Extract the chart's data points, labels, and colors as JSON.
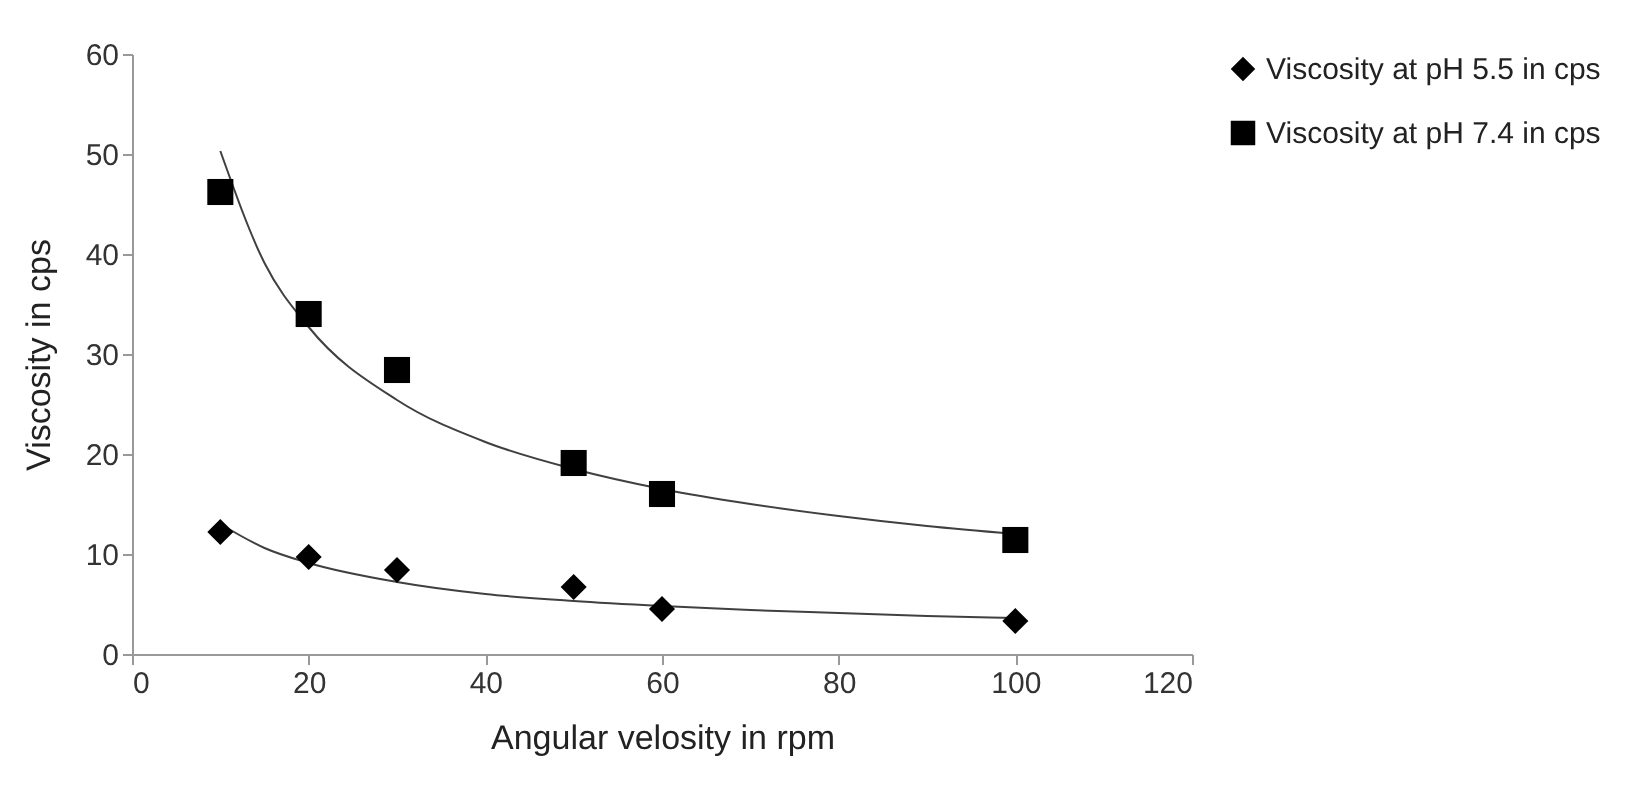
{
  "chart_data": {
    "type": "scatter",
    "xlabel": "Angular  velosity  in rpm",
    "ylabel": "Viscosity in cps",
    "x": [
      10,
      20,
      30,
      50,
      60,
      100
    ],
    "series": [
      {
        "name": "Viscosity at pH 5.5 in cps",
        "color": "#000000",
        "marker": "diamond",
        "values": [
          12.2,
          9.7,
          8.4,
          6.7,
          4.5,
          3.3
        ]
      },
      {
        "name": "Viscosity at pH 7.4 in cps",
        "color": "#000000",
        "marker": "square",
        "values": [
          46.2,
          34,
          28.4,
          19.1,
          16,
          11.4
        ]
      },
      {
        "type": "line",
        "color": "#404040",
        "marker": "none",
        "x": [
          10,
          15,
          20,
          30,
          40,
          50,
          60,
          70,
          80,
          90,
          100
        ],
        "values": [
          13,
          10.6,
          9.1,
          7.2,
          6.0,
          5.3,
          4.8,
          4.4,
          4.1,
          3.8,
          3.6
        ]
      },
      {
        "type": "line",
        "color": "#404040",
        "marker": "none",
        "x": [
          10,
          15,
          20,
          30,
          40,
          50,
          60,
          70,
          80,
          90,
          100
        ],
        "values": [
          50.3,
          39.1,
          32.7,
          25.4,
          21.2,
          18.5,
          16.5,
          15.0,
          13.8,
          12.8,
          12.0
        ]
      }
    ],
    "xlim": [
      0,
      120
    ],
    "xticks": [
      0,
      20,
      40,
      60,
      80,
      100,
      120
    ],
    "ylim": [
      0,
      60
    ],
    "yticks": [
      0,
      10,
      20,
      30,
      40,
      50,
      60
    ],
    "grid": false,
    "legend": "top right"
  }
}
